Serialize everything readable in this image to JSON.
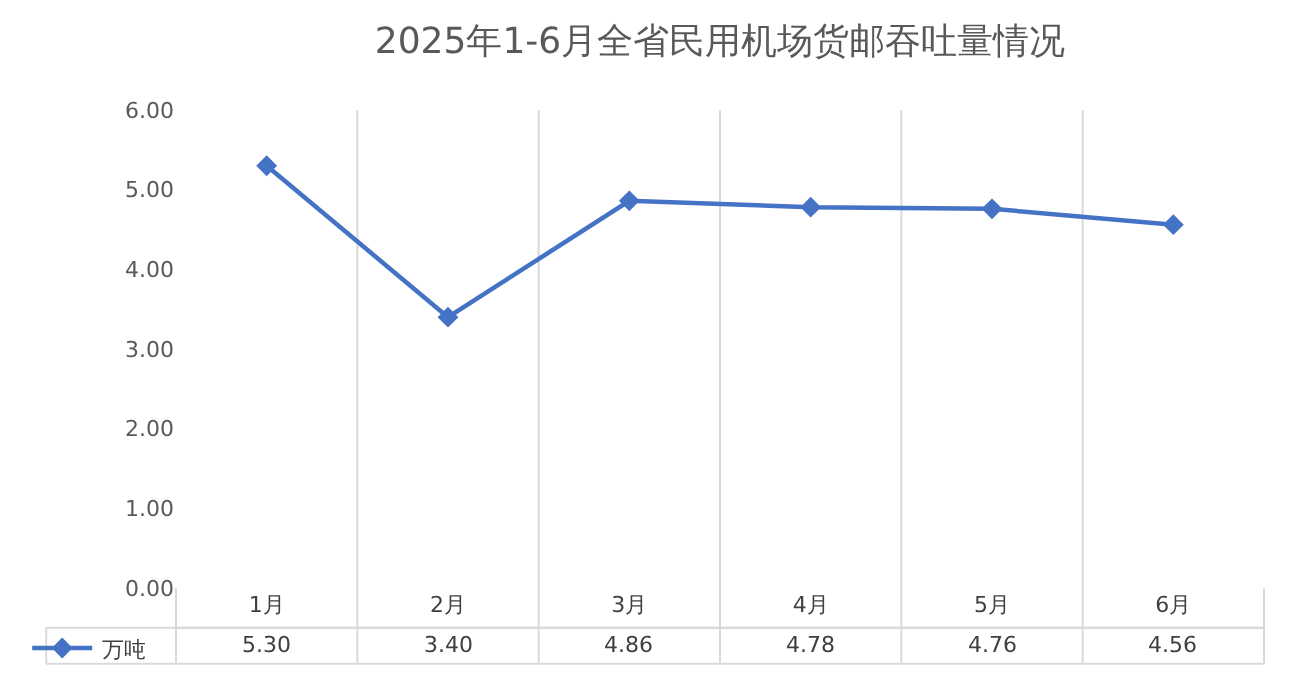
{
  "chart_data": {
    "type": "line",
    "title": "2025年1-6月全省民用机场货邮吞吐量情况",
    "categories": [
      "1月",
      "2月",
      "3月",
      "4月",
      "5月",
      "6月"
    ],
    "series": [
      {
        "name": "万吨",
        "color": "#4472c4",
        "values": [
          5.3,
          3.4,
          4.86,
          4.78,
          4.76,
          4.56
        ],
        "value_labels": [
          "5.30",
          "3.40",
          "4.86",
          "4.78",
          "4.76",
          "4.56"
        ]
      }
    ],
    "ylim": [
      0,
      6
    ],
    "yticks": [
      {
        "value": 0,
        "label": "0.00"
      },
      {
        "value": 1,
        "label": "1.00"
      },
      {
        "value": 2,
        "label": "2.00"
      },
      {
        "value": 3,
        "label": "3.00"
      },
      {
        "value": 4,
        "label": "4.00"
      },
      {
        "value": 5,
        "label": "5.00"
      },
      {
        "value": 6,
        "label": "6.00"
      }
    ],
    "grid": "x",
    "legend": "bottom left",
    "marker": "diamond",
    "line_style": "solid"
  }
}
